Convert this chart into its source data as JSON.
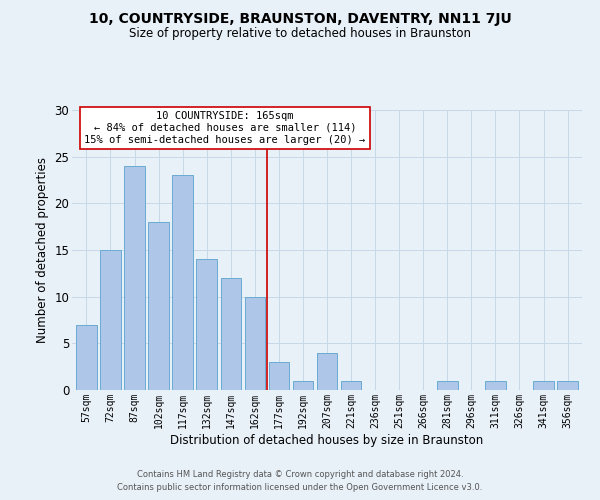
{
  "title": "10, COUNTRYSIDE, BRAUNSTON, DAVENTRY, NN11 7JU",
  "subtitle": "Size of property relative to detached houses in Braunston",
  "xlabel": "Distribution of detached houses by size in Braunston",
  "ylabel": "Number of detached properties",
  "bar_labels": [
    "57sqm",
    "72sqm",
    "87sqm",
    "102sqm",
    "117sqm",
    "132sqm",
    "147sqm",
    "162sqm",
    "177sqm",
    "192sqm",
    "207sqm",
    "221sqm",
    "236sqm",
    "251sqm",
    "266sqm",
    "281sqm",
    "296sqm",
    "311sqm",
    "326sqm",
    "341sqm",
    "356sqm"
  ],
  "bar_values": [
    7,
    15,
    24,
    18,
    23,
    14,
    12,
    10,
    3,
    1,
    4,
    1,
    0,
    0,
    0,
    1,
    0,
    1,
    0,
    1,
    1
  ],
  "bar_color": "#aec6e8",
  "bar_edge_color": "#6aaad4",
  "vline_x": 7.5,
  "vline_color": "#cc0000",
  "annotation_title": "10 COUNTRYSIDE: 165sqm",
  "annotation_line1": "← 84% of detached houses are smaller (114)",
  "annotation_line2": "15% of semi-detached houses are larger (20) →",
  "annotation_box_color": "#ffffff",
  "annotation_box_edge": "#cc0000",
  "ylim": [
    0,
    30
  ],
  "yticks": [
    0,
    5,
    10,
    15,
    20,
    25,
    30
  ],
  "grid_color": "#c8d8e8",
  "bg_color": "#e8f0f8",
  "footnote1": "Contains HM Land Registry data © Crown copyright and database right 2024.",
  "footnote2": "Contains public sector information licensed under the Open Government Licence v3.0."
}
